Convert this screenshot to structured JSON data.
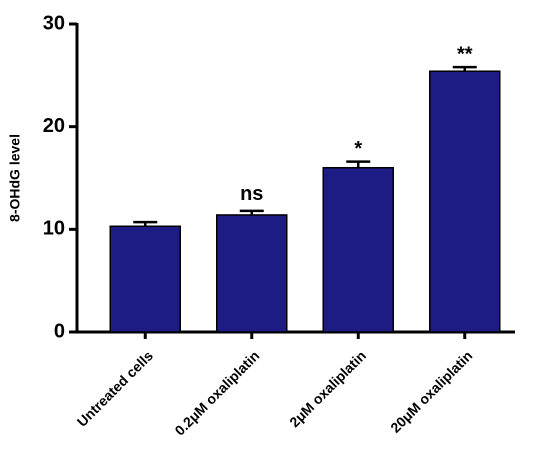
{
  "chart_data": {
    "type": "bar",
    "y_label": "8-OHdG level",
    "categories": [
      "Untreated cells",
      "0.2μM oxaliplatin",
      "2μM oxaliplatin",
      "20μM oxaliplatin"
    ],
    "values": [
      10.3,
      11.4,
      16.0,
      25.4
    ],
    "errors": [
      0.4,
      0.4,
      0.6,
      0.4
    ],
    "annotations": [
      null,
      "ns",
      "*",
      "**"
    ],
    "color": "#1c1c84",
    "ylim": [
      0,
      30
    ],
    "yticks": [
      0,
      10,
      20,
      30
    ],
    "grid": false
  }
}
